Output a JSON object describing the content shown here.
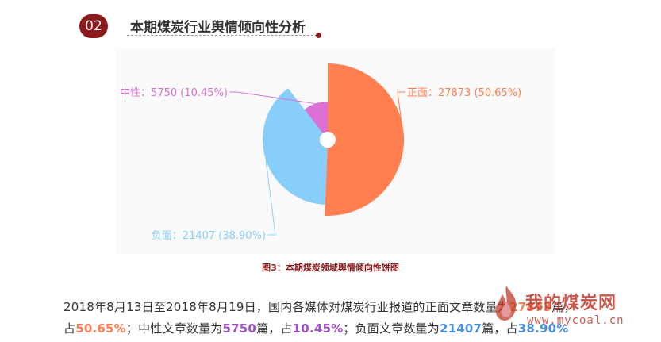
{
  "header": {
    "badge": "02",
    "title": "本期煤炭行业舆情倾向性分析"
  },
  "chart_data": {
    "type": "pie",
    "subtype": "rose",
    "title": "",
    "slices": [
      {
        "name": "正面",
        "value": 27873,
        "percent": "50.65%",
        "color": "#ff7f50",
        "label": "正面：27873 (50.65%)"
      },
      {
        "name": "负面",
        "value": 21407,
        "percent": "38.90%",
        "color": "#87cefa",
        "label": "负面：21407 (38.90%)"
      },
      {
        "name": "中性",
        "value": 5750,
        "percent": "10.45%",
        "color": "#da70d6",
        "label": "中性：5750 (10.45%)"
      }
    ]
  },
  "caption": "图3：本期煤炭领域舆情倾向性饼图",
  "summary": {
    "line1_text": "2018年8月13日至2018年8月19日，国内各媒体对煤炭行业报道的正面文章数量为",
    "line1_value": "27873",
    "line1_suffix": "篇，",
    "line2_prefix": "占",
    "pos_percent": "50.65%",
    "mid1": "；中性文章数量为",
    "neu_count": "5750",
    "mid2": "篇，占",
    "neu_percent": "10.45%",
    "mid3": "；负面文章数量为",
    "neg_count": "21407",
    "mid4": "篇，占",
    "neg_percent": "38.90%"
  },
  "watermark": {
    "name": "我的煤炭网",
    "url": "www.mycoal.cn"
  }
}
